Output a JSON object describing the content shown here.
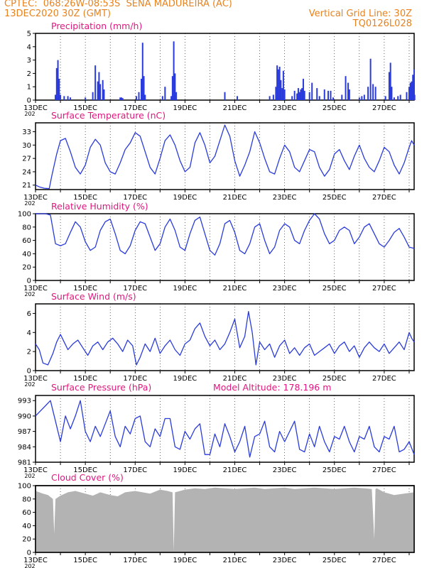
{
  "header": {
    "line1": "CPTEC:  068:26W-08:53S  SENA MADUREIRA (AC)",
    "line2_left": "13DEC2020 30Z (GMT)",
    "line2_right": "Vertical Grid Line: 30Z",
    "line3_right": "TQ0126L028"
  },
  "x_axis": {
    "labels": [
      "13DEC",
      "15DEC",
      "17DEC",
      "19DEC",
      "21DEC",
      "23DEC",
      "25DEC",
      "27DEC"
    ],
    "year_fragment": "202"
  },
  "colors": {
    "line": "#2a3bdc",
    "bar": "#2a3bdc",
    "cloud": "#b3b3b3",
    "title": "#e0177f",
    "header": "#e8821e",
    "grid": "#000000"
  },
  "chart_data": [
    {
      "type": "bar",
      "title": "Precipitation (mm/h)",
      "ylim": [
        0,
        5
      ],
      "yticks": [
        "0",
        "1",
        "2",
        "3",
        "4",
        "5"
      ],
      "x_start_day": 13,
      "x_end_day": 28.2,
      "bars": [
        [
          13.8,
          0.4
        ],
        [
          13.85,
          2.4
        ],
        [
          13.9,
          3.0
        ],
        [
          13.95,
          1.6
        ],
        [
          14.0,
          0.4
        ],
        [
          14.15,
          0.3
        ],
        [
          14.3,
          0.3
        ],
        [
          14.4,
          0.2
        ],
        [
          15.0,
          0.2
        ],
        [
          15.3,
          0.6
        ],
        [
          15.4,
          2.6
        ],
        [
          15.5,
          1.4
        ],
        [
          15.55,
          2.1
        ],
        [
          15.6,
          1.2
        ],
        [
          15.7,
          1.5
        ],
        [
          15.75,
          0.8
        ],
        [
          16.4,
          0.2
        ],
        [
          16.45,
          0.2
        ],
        [
          16.5,
          0.15
        ],
        [
          17.05,
          0.3
        ],
        [
          17.15,
          0.6
        ],
        [
          17.25,
          1.6
        ],
        [
          17.3,
          4.3
        ],
        [
          17.35,
          1.8
        ],
        [
          17.4,
          0.4
        ],
        [
          18.1,
          0.3
        ],
        [
          18.2,
          1.0
        ],
        [
          18.45,
          0.3
        ],
        [
          18.5,
          1.8
        ],
        [
          18.55,
          4.4
        ],
        [
          18.6,
          2.0
        ],
        [
          18.65,
          0.6
        ],
        [
          20.6,
          0.6
        ],
        [
          21.1,
          0.3
        ],
        [
          22.4,
          0.3
        ],
        [
          22.55,
          0.4
        ],
        [
          22.65,
          1.0
        ],
        [
          22.7,
          2.6
        ],
        [
          22.75,
          2.3
        ],
        [
          22.8,
          2.5
        ],
        [
          22.85,
          1.5
        ],
        [
          22.9,
          0.9
        ],
        [
          22.95,
          2.2
        ],
        [
          23.0,
          0.8
        ],
        [
          23.3,
          0.3
        ],
        [
          23.4,
          0.7
        ],
        [
          23.5,
          0.5
        ],
        [
          23.55,
          0.9
        ],
        [
          23.6,
          0.6
        ],
        [
          23.65,
          0.8
        ],
        [
          23.7,
          0.9
        ],
        [
          23.75,
          1.6
        ],
        [
          23.8,
          0.7
        ],
        [
          24.0,
          0.6
        ],
        [
          24.1,
          1.3
        ],
        [
          24.3,
          0.9
        ],
        [
          24.4,
          0.3
        ],
        [
          24.6,
          0.8
        ],
        [
          24.75,
          0.7
        ],
        [
          24.85,
          0.7
        ],
        [
          24.95,
          0.2
        ],
        [
          25.3,
          0.4
        ],
        [
          25.45,
          1.8
        ],
        [
          25.55,
          1.3
        ],
        [
          25.6,
          0.8
        ],
        [
          26.0,
          0.2
        ],
        [
          26.1,
          0.3
        ],
        [
          26.2,
          0.4
        ],
        [
          26.35,
          1.0
        ],
        [
          26.45,
          3.1
        ],
        [
          26.55,
          1.2
        ],
        [
          26.65,
          1.0
        ],
        [
          27.05,
          0.3
        ],
        [
          27.2,
          2.1
        ],
        [
          27.25,
          2.8
        ],
        [
          27.3,
          1.0
        ],
        [
          27.4,
          0.2
        ],
        [
          27.55,
          0.3
        ],
        [
          27.65,
          0.4
        ],
        [
          27.9,
          0.6
        ],
        [
          28.0,
          1.0
        ],
        [
          28.05,
          1.3
        ],
        [
          28.1,
          1.4
        ],
        [
          28.15,
          1.9
        ],
        [
          28.2,
          2.3
        ],
        [
          28.22,
          0.4
        ]
      ]
    },
    {
      "type": "line",
      "title": "Surface Temperature (nC)",
      "ylim": [
        20,
        35
      ],
      "yticks": [
        "21",
        "24",
        "27",
        "30",
        "33"
      ],
      "x": [
        13.0,
        13.15,
        13.35,
        13.55,
        13.65,
        13.85,
        14.0,
        14.2,
        14.4,
        14.6,
        14.8,
        15.0,
        15.2,
        15.4,
        15.6,
        15.8,
        16.0,
        16.2,
        16.4,
        16.6,
        16.8,
        17.0,
        17.2,
        17.4,
        17.6,
        17.8,
        18.0,
        18.2,
        18.4,
        18.6,
        18.8,
        19.0,
        19.2,
        19.4,
        19.6,
        19.8,
        20.0,
        20.2,
        20.4,
        20.6,
        20.8,
        21.0,
        21.2,
        21.4,
        21.6,
        21.8,
        22.0,
        22.2,
        22.4,
        22.6,
        22.8,
        23.0,
        23.2,
        23.4,
        23.6,
        23.8,
        24.0,
        24.2,
        24.4,
        24.6,
        24.8,
        25.0,
        25.2,
        25.4,
        25.6,
        25.8,
        26.0,
        26.2,
        26.4,
        26.6,
        26.8,
        27.0,
        27.2,
        27.4,
        27.6,
        27.8,
        28.0,
        28.1,
        28.2
      ],
      "y": [
        21.0,
        20.6,
        20.3,
        20.2,
        23.0,
        28.0,
        31.0,
        31.5,
        28.5,
        25.0,
        23.5,
        25.5,
        29.5,
        31.3,
        30.0,
        26.0,
        24.0,
        23.5,
        26.0,
        29.0,
        30.5,
        32.8,
        32.0,
        28.5,
        25.0,
        23.5,
        27.0,
        31.0,
        32.3,
        30.0,
        26.5,
        24.0,
        25.0,
        30.5,
        32.8,
        30.0,
        26.0,
        27.5,
        31.0,
        34.5,
        32.0,
        26.5,
        23.0,
        25.5,
        28.5,
        33.0,
        30.5,
        27.0,
        24.0,
        23.5,
        27.0,
        30.0,
        28.5,
        25.0,
        24.0,
        26.5,
        29.0,
        28.5,
        25.0,
        23.0,
        24.5,
        28.0,
        29.0,
        26.5,
        24.5,
        27.5,
        30.0,
        27.0,
        25.0,
        24.0,
        26.5,
        29.5,
        28.5,
        25.5,
        23.5,
        26.0,
        29.5,
        31.0,
        30.0
      ]
    },
    {
      "type": "line",
      "title": "Relative Humidity (%)",
      "ylim": [
        0,
        100
      ],
      "yticks": [
        "0",
        "20",
        "40",
        "60",
        "80",
        "100"
      ],
      "x": [
        13.0,
        13.4,
        13.6,
        13.8,
        14.0,
        14.2,
        14.4,
        14.6,
        14.8,
        15.0,
        15.2,
        15.4,
        15.6,
        15.8,
        16.0,
        16.2,
        16.4,
        16.6,
        16.8,
        17.0,
        17.2,
        17.4,
        17.6,
        17.8,
        18.0,
        18.2,
        18.4,
        18.6,
        18.8,
        19.0,
        19.2,
        19.4,
        19.6,
        19.8,
        20.0,
        20.2,
        20.4,
        20.6,
        20.8,
        21.0,
        21.2,
        21.4,
        21.6,
        21.8,
        22.0,
        22.2,
        22.4,
        22.6,
        22.8,
        23.0,
        23.2,
        23.4,
        23.6,
        23.8,
        24.0,
        24.2,
        24.4,
        24.6,
        24.8,
        25.0,
        25.2,
        25.4,
        25.6,
        25.8,
        26.0,
        26.2,
        26.4,
        26.6,
        26.8,
        27.0,
        27.2,
        27.4,
        27.6,
        27.8,
        28.0,
        28.2
      ],
      "y": [
        100,
        100,
        98,
        55,
        52,
        55,
        72,
        88,
        80,
        58,
        45,
        50,
        75,
        88,
        92,
        70,
        45,
        40,
        52,
        75,
        88,
        85,
        65,
        45,
        55,
        80,
        92,
        75,
        50,
        45,
        70,
        90,
        95,
        70,
        45,
        38,
        55,
        85,
        90,
        72,
        45,
        40,
        55,
        80,
        85,
        60,
        40,
        50,
        75,
        85,
        80,
        60,
        55,
        75,
        90,
        100,
        92,
        70,
        55,
        60,
        75,
        80,
        75,
        55,
        65,
        80,
        85,
        70,
        55,
        50,
        60,
        72,
        78,
        65,
        50,
        48
      ]
    },
    {
      "type": "line",
      "title": "Surface Wind (m/s)",
      "ylim": [
        0,
        7
      ],
      "yticks": [
        "0",
        "2",
        "4",
        "6"
      ],
      "x": [
        13.0,
        13.15,
        13.3,
        13.5,
        13.7,
        13.85,
        14.0,
        14.15,
        14.3,
        14.5,
        14.7,
        14.9,
        15.1,
        15.3,
        15.5,
        15.7,
        15.9,
        16.1,
        16.3,
        16.5,
        16.7,
        16.9,
        17.05,
        17.2,
        17.4,
        17.6,
        17.8,
        18.0,
        18.2,
        18.4,
        18.6,
        18.8,
        19.0,
        19.2,
        19.4,
        19.6,
        19.8,
        20.0,
        20.2,
        20.4,
        20.6,
        20.8,
        21.0,
        21.2,
        21.4,
        21.55,
        21.7,
        21.85,
        22.0,
        22.2,
        22.4,
        22.6,
        22.8,
        23.0,
        23.2,
        23.4,
        23.6,
        23.8,
        24.0,
        24.2,
        24.4,
        24.6,
        24.8,
        25.0,
        25.2,
        25.4,
        25.6,
        25.8,
        26.0,
        26.2,
        26.4,
        26.6,
        26.8,
        27.0,
        27.2,
        27.4,
        27.6,
        27.8,
        28.0,
        28.1,
        28.2
      ],
      "y": [
        2.8,
        2.2,
        0.8,
        0.6,
        1.8,
        3.0,
        3.8,
        3.0,
        2.2,
        2.8,
        3.2,
        2.4,
        1.6,
        2.6,
        3.0,
        2.2,
        3.0,
        3.4,
        2.8,
        2.0,
        3.2,
        2.6,
        0.6,
        1.4,
        2.8,
        2.0,
        3.4,
        1.8,
        2.6,
        3.2,
        2.2,
        1.6,
        2.8,
        3.2,
        4.4,
        5.0,
        3.6,
        2.6,
        3.2,
        2.2,
        2.8,
        4.0,
        5.4,
        2.4,
        3.6,
        6.2,
        4.0,
        0.6,
        3.0,
        2.2,
        2.8,
        1.4,
        2.6,
        3.2,
        1.8,
        2.4,
        1.6,
        2.4,
        2.8,
        1.6,
        2.0,
        2.4,
        2.8,
        1.8,
        2.6,
        3.0,
        2.0,
        2.6,
        1.4,
        2.4,
        3.0,
        2.4,
        2.0,
        2.8,
        1.8,
        2.4,
        3.0,
        2.2,
        4.0,
        3.4,
        3.0
      ]
    },
    {
      "type": "line",
      "title": "Surface Pressure (hPa)",
      "annotation": "Model Altitude: 178.196 m",
      "ylim": [
        981,
        994
      ],
      "yticks": [
        "981",
        "984",
        "987",
        "990",
        "993"
      ],
      "x": [
        13.0,
        13.2,
        13.4,
        13.6,
        13.8,
        14.0,
        14.2,
        14.4,
        14.6,
        14.8,
        15.0,
        15.2,
        15.4,
        15.6,
        15.8,
        16.0,
        16.2,
        16.4,
        16.6,
        16.8,
        17.0,
        17.2,
        17.4,
        17.6,
        17.8,
        18.0,
        18.2,
        18.4,
        18.6,
        18.8,
        19.0,
        19.2,
        19.4,
        19.6,
        19.8,
        20.0,
        20.2,
        20.4,
        20.6,
        20.8,
        21.0,
        21.2,
        21.4,
        21.6,
        21.8,
        22.0,
        22.2,
        22.4,
        22.6,
        22.8,
        23.0,
        23.2,
        23.4,
        23.6,
        23.8,
        24.0,
        24.2,
        24.4,
        24.6,
        24.8,
        25.0,
        25.2,
        25.4,
        25.6,
        25.8,
        26.0,
        26.2,
        26.4,
        26.6,
        26.8,
        27.0,
        27.2,
        27.4,
        27.6,
        27.8,
        28.0,
        28.2
      ],
      "y": [
        990.0,
        991.0,
        992.0,
        993.0,
        989.0,
        985.0,
        990.0,
        987.5,
        990.0,
        993.0,
        987.0,
        985.0,
        988.0,
        986.0,
        988.5,
        991.0,
        986.0,
        984.0,
        988.0,
        986.5,
        989.5,
        990.0,
        985.0,
        984.0,
        987.5,
        986.0,
        989.5,
        989.5,
        984.0,
        983.5,
        987.0,
        985.5,
        987.5,
        988.5,
        982.5,
        982.5,
        986.5,
        984.0,
        988.5,
        986.0,
        983.0,
        985.0,
        988.0,
        982.0,
        986.0,
        986.5,
        989.0,
        984.0,
        983.0,
        987.0,
        985.0,
        987.0,
        989.0,
        983.5,
        983.0,
        986.5,
        984.0,
        988.0,
        985.0,
        983.0,
        986.0,
        985.5,
        988.0,
        985.0,
        983.0,
        986.0,
        985.5,
        988.0,
        984.0,
        983.0,
        986.0,
        985.5,
        988.0,
        983.0,
        983.5,
        985.0,
        982.5
      ]
    },
    {
      "type": "area",
      "title": "Cloud Cover (%)",
      "ylim": [
        0,
        100
      ],
      "yticks": [
        "0",
        "20",
        "40",
        "60",
        "80",
        "100"
      ],
      "x": [
        13.0,
        13.3,
        13.5,
        13.7,
        13.75,
        13.8,
        14.0,
        14.3,
        14.6,
        15.0,
        15.3,
        15.6,
        16.0,
        16.3,
        16.6,
        17.0,
        17.3,
        17.6,
        18.0,
        18.3,
        18.5,
        18.55,
        18.6,
        19.0,
        19.4,
        19.8,
        20.2,
        20.6,
        21.0,
        21.4,
        21.8,
        22.2,
        22.6,
        23.0,
        23.4,
        23.8,
        24.2,
        24.6,
        25.0,
        25.4,
        25.8,
        26.2,
        26.5,
        26.6,
        26.65,
        26.7,
        27.0,
        27.4,
        27.8,
        28.2
      ],
      "y": [
        92,
        88,
        86,
        80,
        28,
        80,
        85,
        90,
        92,
        88,
        85,
        90,
        86,
        84,
        90,
        92,
        90,
        88,
        94,
        92,
        90,
        2,
        90,
        94,
        96,
        95,
        97,
        96,
        95,
        96,
        97,
        95,
        96,
        97,
        95,
        96,
        97,
        96,
        95,
        96,
        97,
        96,
        95,
        20,
        95,
        96,
        90,
        86,
        88,
        90
      ]
    }
  ]
}
